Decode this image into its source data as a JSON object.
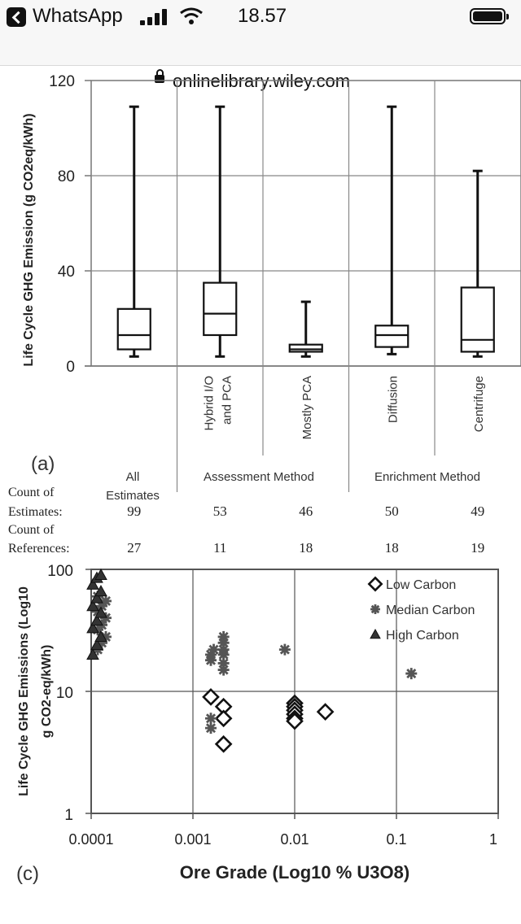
{
  "status_bar": {
    "back_app": "WhatsApp",
    "time": "18.57",
    "icons": [
      "back-icon",
      "signal-icon",
      "wifi-icon",
      "battery-icon"
    ]
  },
  "browser": {
    "url": "onlinelibrary.wiley.com",
    "icons": [
      "lock-icon"
    ]
  },
  "figure_a": {
    "panel_label": "(a)",
    "ylabel": "Life Cycle GHG Emission (g CO2eq/kWh)",
    "yticks": [
      "120",
      "80",
      "40",
      "0"
    ],
    "row_labels": {
      "count_estimates_1": "Count of",
      "count_estimates_2": "Estimates:",
      "count_refs_1": "Count of",
      "count_refs_2": "References:"
    },
    "group_labels": {
      "all_1": "All",
      "all_2": "Estimates",
      "assessment": "Assessment Method",
      "enrichment": "Enrichment Method"
    }
  },
  "figure_c": {
    "panel_label": "(c)",
    "ylabel_1": "Life Cycle GHG Emissions (Log10",
    "ylabel_2": "g CO2-eq/kWh)",
    "xlabel": "Ore Grade (Log10 % U3O8)",
    "yticks": [
      "100",
      "10",
      "1"
    ],
    "xticks": [
      "0.0001",
      "0.001",
      "0.01",
      "0.1",
      "1"
    ]
  },
  "chart_data": [
    {
      "type": "box",
      "ylim": [
        0,
        120
      ],
      "grid": true,
      "categories": [
        "All Estimates",
        "Hybrid I/O and PCA",
        "Mostly PCA",
        "Diffusion",
        "Centrifuge"
      ],
      "groups": [
        "All Estimates",
        "Assessment Method",
        "Assessment Method",
        "Enrichment Method",
        "Enrichment Method"
      ],
      "boxes": [
        {
          "min": 4,
          "q1": 7,
          "median": 13,
          "q3": 24,
          "max": 109
        },
        {
          "min": 4,
          "q1": 13,
          "median": 22,
          "q3": 35,
          "max": 109
        },
        {
          "min": 4,
          "q1": 6,
          "median": 7,
          "q3": 9,
          "max": 27
        },
        {
          "min": 5,
          "q1": 8,
          "median": 13,
          "q3": 17,
          "max": 109
        },
        {
          "min": 4,
          "q1": 6,
          "median": 11,
          "q3": 33,
          "max": 82
        }
      ],
      "count_of_estimates": [
        "99",
        "53",
        "46",
        "50",
        "49"
      ],
      "count_of_references": [
        "27",
        "11",
        "18",
        "18",
        "19"
      ]
    },
    {
      "type": "scatter",
      "x_scale": "log",
      "y_scale": "log",
      "xlim": [
        0.0001,
        1
      ],
      "ylim": [
        1,
        100
      ],
      "grid": true,
      "legend_position": "top-right",
      "series": [
        {
          "name": "Low Carbon",
          "marker": "diamond",
          "x": [
            0.0015,
            0.002,
            0.002,
            0.002,
            0.01,
            0.01,
            0.01,
            0.01,
            0.01,
            0.01,
            0.02
          ],
          "y": [
            9,
            7.5,
            6,
            3.7,
            8,
            7.5,
            7,
            6.5,
            6,
            5.7,
            6.8
          ]
        },
        {
          "name": "Median Carbon",
          "marker": "asterisk",
          "x": [
            0.0001,
            0.0001,
            0.0001,
            0.0001,
            0.0001,
            0.0001,
            0.0001,
            0.0001,
            0.0001,
            0.0001,
            0.0015,
            0.0015,
            0.0015,
            0.0015,
            0.0016,
            0.002,
            0.002,
            0.002,
            0.002,
            0.002,
            0.002,
            0.008,
            0.14
          ],
          "y": [
            22,
            25,
            28,
            32,
            35,
            40,
            45,
            50,
            55,
            60,
            5,
            6,
            18,
            20,
            22,
            15,
            17,
            20,
            22,
            25,
            28,
            22,
            14
          ]
        },
        {
          "name": "High Carbon",
          "marker": "triangle",
          "x": [
            0.0001,
            0.0001,
            0.0001,
            0.0001,
            0.0001,
            0.0001,
            0.0001,
            0.0001,
            0.0001,
            0.0001,
            0.0001,
            0.0001
          ],
          "y": [
            20,
            24,
            28,
            33,
            38,
            44,
            50,
            58,
            66,
            75,
            85,
            90
          ]
        }
      ]
    }
  ]
}
